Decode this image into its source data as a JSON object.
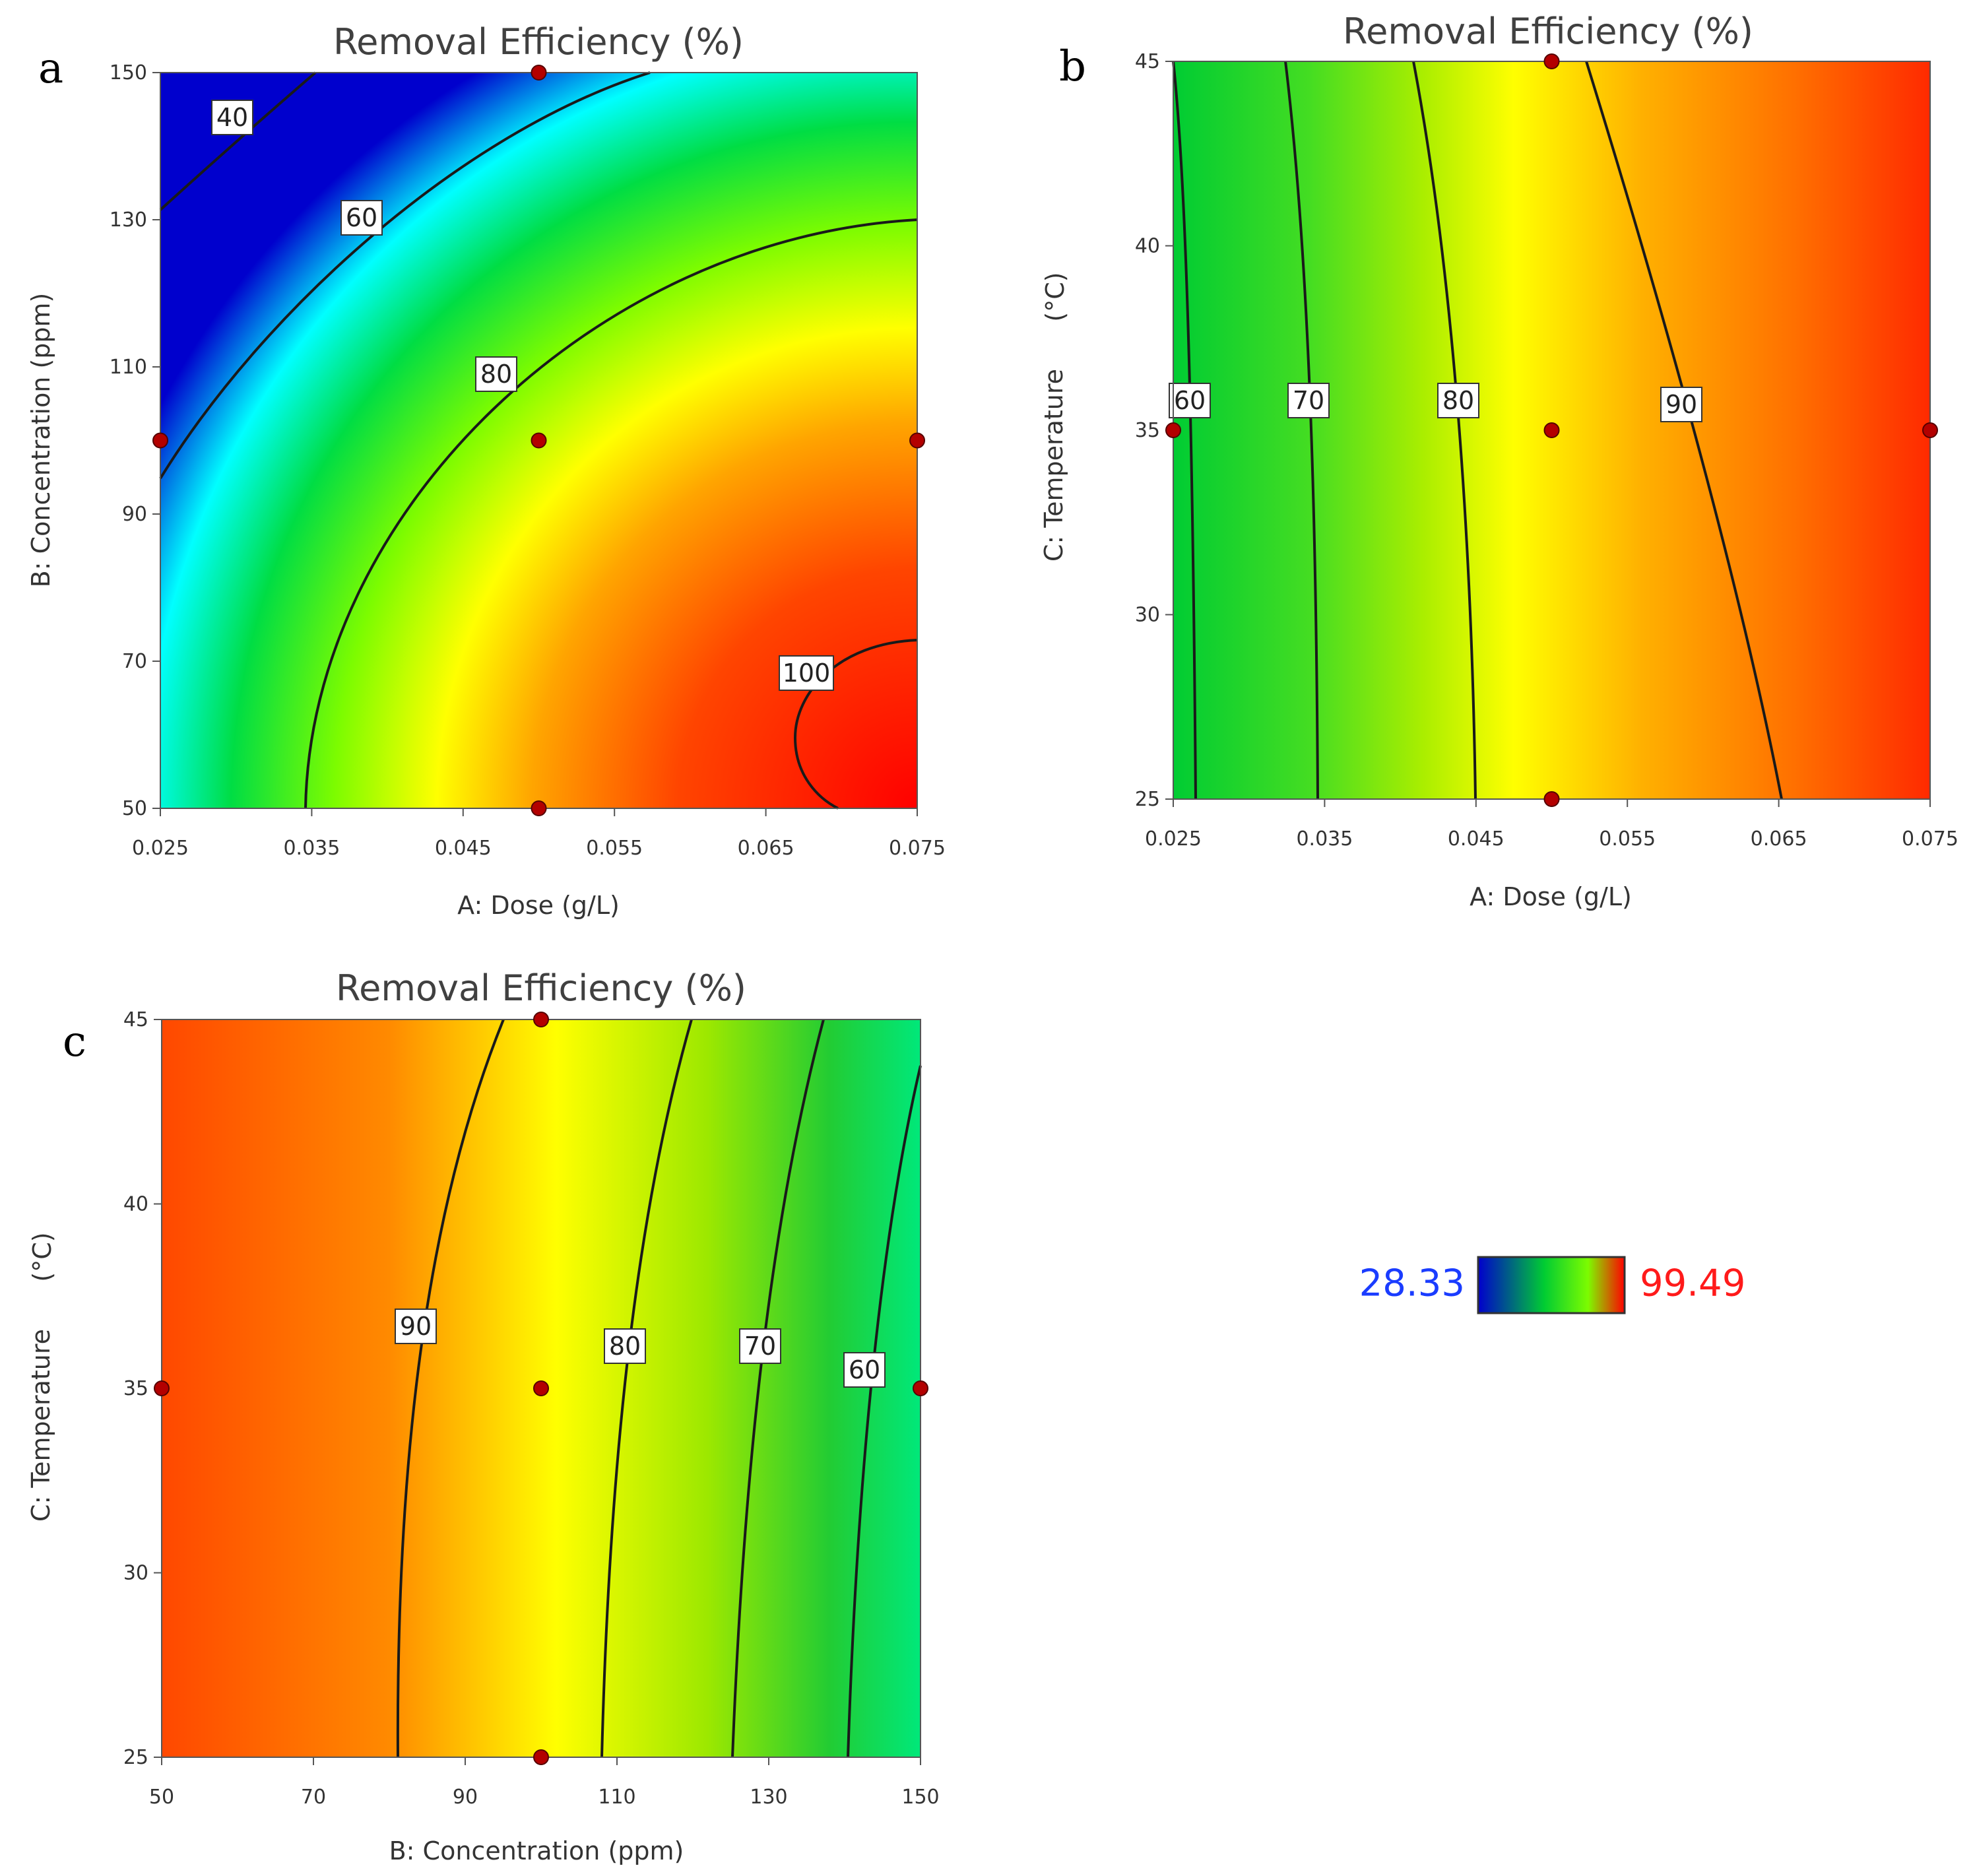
{
  "chart_data": [
    {
      "panel": "a",
      "type": "heatmap",
      "subtype": "contour",
      "title": "Removal Efficiency (%)",
      "xlabel": "A: Dose (g/L)",
      "ylabel": "B: Concentration (ppm)",
      "xlim": [
        0.025,
        0.075
      ],
      "ylim": [
        50,
        150
      ],
      "xticks": [
        "0.025",
        "0.035",
        "0.045",
        "0.055",
        "0.065",
        "0.075"
      ],
      "yticks": [
        "50",
        "70",
        "90",
        "110",
        "130",
        "150"
      ],
      "contour_levels": [
        40,
        60,
        80,
        100
      ],
      "design_points": [
        {
          "x": 0.05,
          "y": 150
        },
        {
          "x": 0.025,
          "y": 100
        },
        {
          "x": 0.05,
          "y": 100
        },
        {
          "x": 0.075,
          "y": 100
        },
        {
          "x": 0.05,
          "y": 50
        }
      ]
    },
    {
      "panel": "b",
      "type": "heatmap",
      "subtype": "contour",
      "title": "Removal Efficiency (%)",
      "xlabel": "A: Dose (g/L)",
      "ylabel": "C: Temperature",
      "ylabel_unit": "(°C)",
      "xlim": [
        0.025,
        0.075
      ],
      "ylim": [
        25,
        45
      ],
      "xticks": [
        "0.025",
        "0.035",
        "0.045",
        "0.055",
        "0.065",
        "0.075"
      ],
      "yticks": [
        "25",
        "30",
        "35",
        "40",
        "45"
      ],
      "contour_levels": [
        60,
        70,
        80,
        90
      ],
      "design_points": [
        {
          "x": 0.05,
          "y": 45
        },
        {
          "x": 0.025,
          "y": 35
        },
        {
          "x": 0.05,
          "y": 35
        },
        {
          "x": 0.075,
          "y": 35
        },
        {
          "x": 0.05,
          "y": 25
        }
      ]
    },
    {
      "panel": "c",
      "type": "heatmap",
      "subtype": "contour",
      "title": "Removal Efficiency (%)",
      "xlabel": "B: Concentration (ppm)",
      "ylabel": "C: Temperature",
      "ylabel_unit": "(°C)",
      "xlim": [
        50,
        150
      ],
      "ylim": [
        25,
        45
      ],
      "xticks": [
        "50",
        "70",
        "90",
        "110",
        "130",
        "150"
      ],
      "yticks": [
        "25",
        "30",
        "35",
        "40",
        "45"
      ],
      "contour_levels": [
        90,
        80,
        70,
        60
      ],
      "design_points": [
        {
          "x": 100,
          "y": 45
        },
        {
          "x": 50,
          "y": 35
        },
        {
          "x": 100,
          "y": 35
        },
        {
          "x": 150,
          "y": 35
        },
        {
          "x": 100,
          "y": 25
        }
      ]
    }
  ],
  "legend": {
    "min_label": "28.33",
    "max_label": "99.49",
    "min_color": "#1a3cff",
    "max_color": "#ff1a1a"
  }
}
